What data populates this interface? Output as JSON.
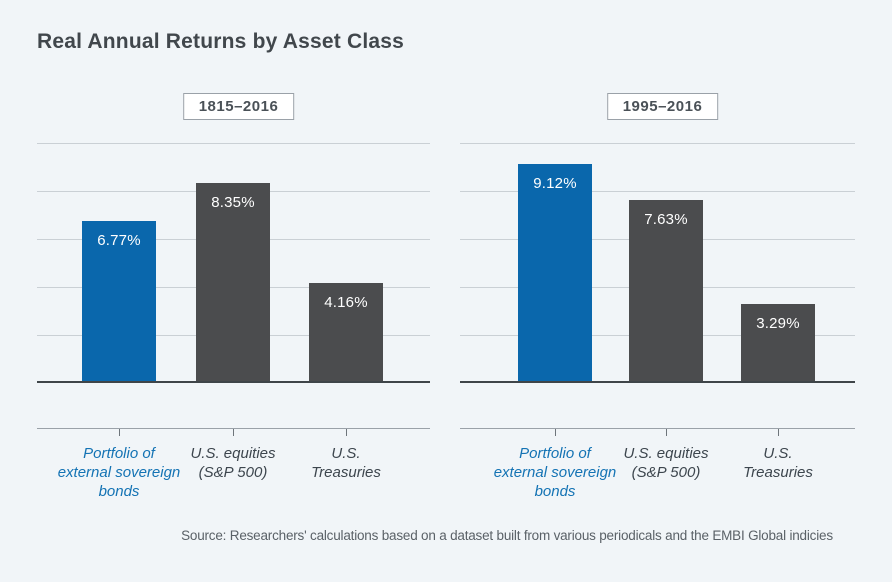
{
  "figure": {
    "title": "Real Annual Returns by Asset Class",
    "source": "Source: Researchers' calculations based on a dataset built from various periodicals and the EMBI Global indicies"
  },
  "colors": {
    "background": "#f1f5f8",
    "highlight_bar": "#0a67ac",
    "default_bar": "#4b4c4e",
    "gridline": "#cad0d5",
    "baseline": "#3f4549",
    "highlight_label": "#1473b4",
    "default_label": "#3d464e"
  },
  "chart_data": [
    {
      "type": "bar",
      "title": "1815–2016",
      "categories": [
        "Portfolio of external sovereign bonds",
        "U.S. equities (S&P 500)",
        "U.S. Treasuries"
      ],
      "category_lines": [
        [
          "Portfolio of",
          "external sovereign",
          "bonds"
        ],
        [
          "U.S. equities",
          "(S&P 500)"
        ],
        [
          "U.S.",
          "Treasuries"
        ]
      ],
      "values": [
        6.77,
        8.35,
        4.16
      ],
      "labels": [
        "6.77%",
        "8.35%",
        "4.16%"
      ],
      "bar_colors": [
        "#0a67ac",
        "#4b4c4e",
        "#4b4c4e"
      ],
      "label_colors": [
        "#1473b4",
        "#3d464e",
        "#3d464e"
      ],
      "ylim": [
        0,
        10
      ],
      "gridline_step": 2,
      "legend": "none",
      "grid": "horizontal"
    },
    {
      "type": "bar",
      "title": "1995–2016",
      "categories": [
        "Portfolio of external sovereign bonds",
        "U.S. equities (S&P 500)",
        "U.S. Treasuries"
      ],
      "category_lines": [
        [
          "Portfolio of",
          "external sovereign",
          "bonds"
        ],
        [
          "U.S. equities",
          "(S&P 500)"
        ],
        [
          "U.S.",
          "Treasuries"
        ]
      ],
      "values": [
        9.12,
        7.63,
        3.29
      ],
      "labels": [
        "9.12%",
        "7.63%",
        "3.29%"
      ],
      "bar_colors": [
        "#0a67ac",
        "#4b4c4e",
        "#4b4c4e"
      ],
      "label_colors": [
        "#1473b4",
        "#3d464e",
        "#3d464e"
      ],
      "ylim": [
        0,
        10
      ],
      "gridline_step": 2,
      "legend": "none",
      "grid": "horizontal"
    }
  ]
}
